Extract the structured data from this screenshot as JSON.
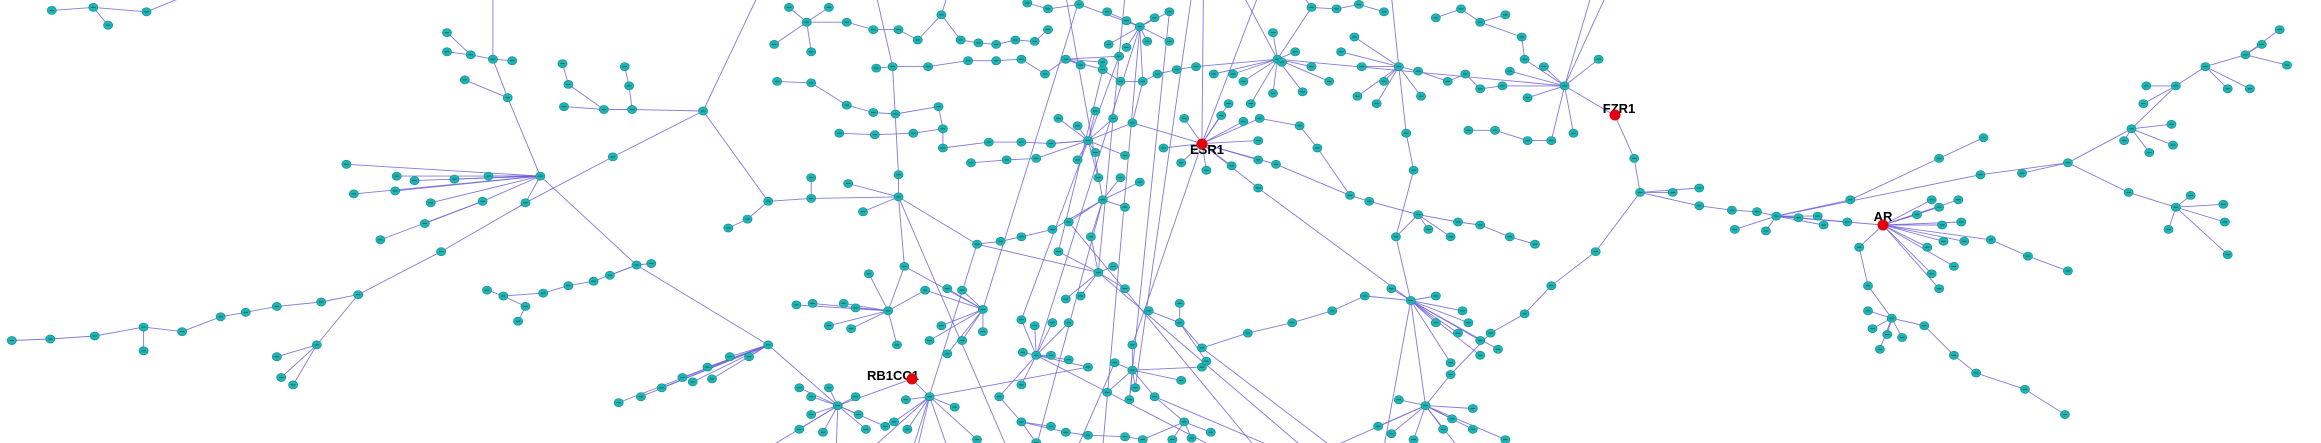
{
  "network": {
    "highlighted_nodes": [
      {
        "label": "FZR1"
      },
      {
        "label": "ESR1"
      },
      {
        "label": "AR"
      },
      {
        "label": "RB1CC1"
      }
    ],
    "colors": {
      "background": "#ffffff",
      "node": "#1db4b4",
      "node_outline": "#0d8c8f",
      "node_text": "#1a1a1a",
      "highlight_node": "#e3000f",
      "edge": "#6c63d9",
      "label": "#000000"
    }
  }
}
